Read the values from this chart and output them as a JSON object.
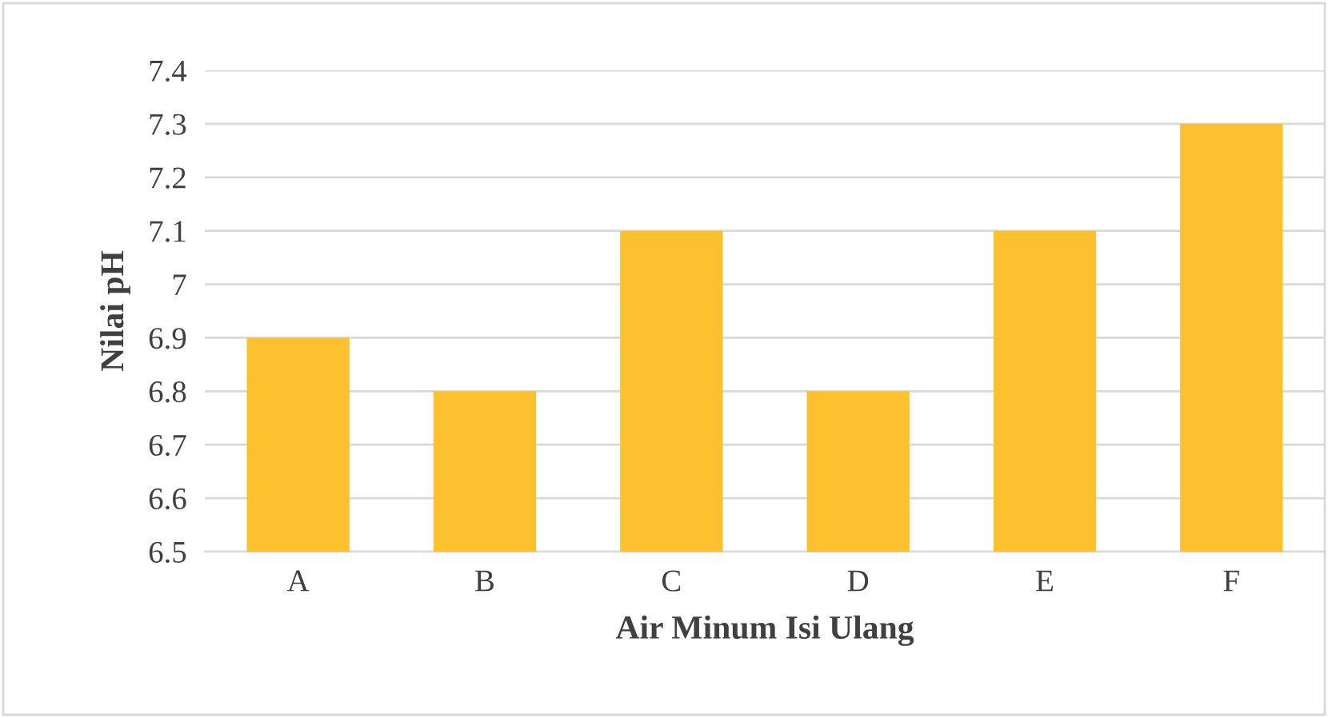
{
  "chart_data": {
    "type": "bar",
    "xlabel": "Air Minum Isi Ulang",
    "ylabel": "Nilai pH",
    "categories": [
      "A",
      "B",
      "C",
      "D",
      "E",
      "F"
    ],
    "values": [
      6.9,
      6.8,
      7.1,
      6.8,
      7.1,
      7.3
    ],
    "color": "#fdc12f",
    "ylim": [
      6.5,
      7.4
    ],
    "yticks": [
      6.5,
      6.6,
      6.7,
      6.8,
      6.9,
      7,
      7.1,
      7.2,
      7.3,
      7.4
    ],
    "grid": "y",
    "legend": false
  }
}
